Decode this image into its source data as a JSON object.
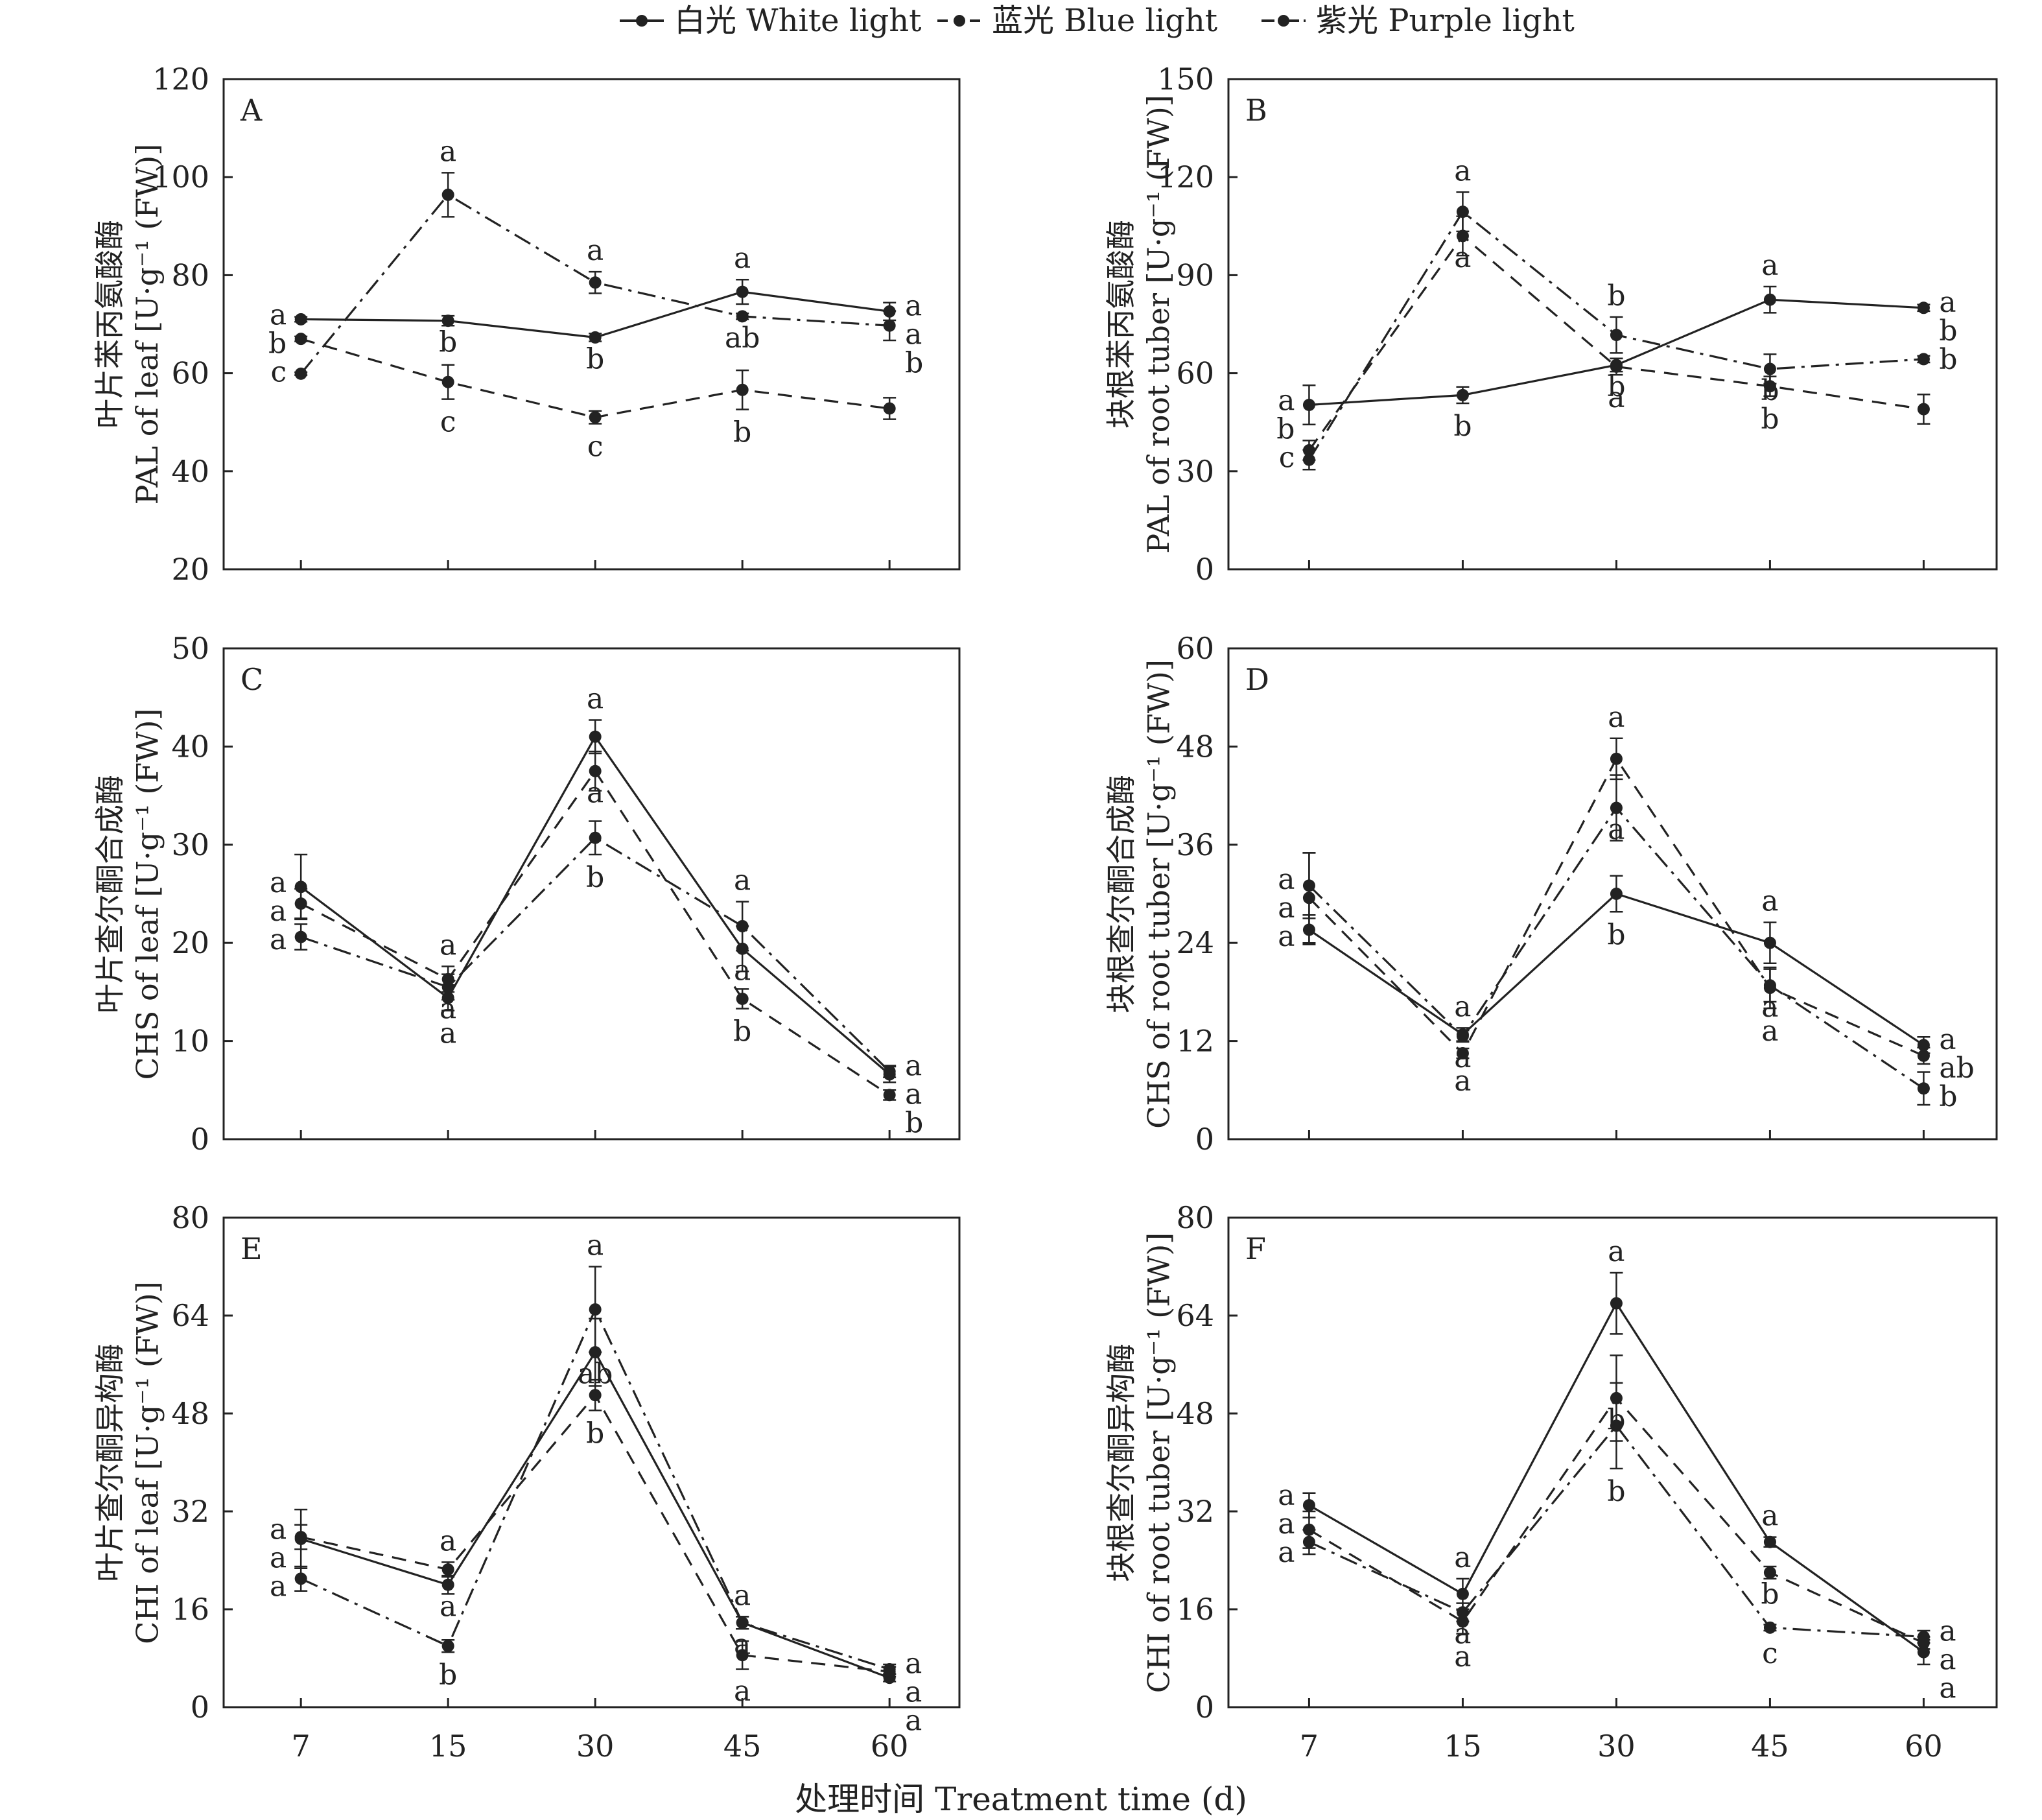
{
  "legend": {
    "white": "白光 White light",
    "blue": "蓝光 Blue light",
    "purple": "紫光 Purple light"
  },
  "x_axis_label": "处理时间 Treatment time (d)",
  "chart_data": [
    {
      "id": "A",
      "type": "line",
      "panel_letter": "A",
      "ylabel_cn": "叶片苯丙氨酸酶",
      "ylabel_en": "PAL of leaf [U·g⁻¹ (FW)]",
      "categories": [
        "7",
        "15",
        "30",
        "45",
        "60"
      ],
      "ylim": [
        20,
        120
      ],
      "yticks": [
        20,
        40,
        60,
        80,
        100,
        120
      ],
      "grid": false,
      "series": [
        {
          "name": "白光 White light",
          "style": "solid",
          "values": [
            71,
            70.7,
            67.3,
            76.6,
            72.6
          ],
          "errors": [
            0.5,
            1,
            0.8,
            2.5,
            1.8
          ],
          "letters": [
            "a",
            "b",
            "b",
            "a",
            "a"
          ]
        },
        {
          "name": "蓝光 Blue light",
          "style": "dashed",
          "values": [
            67,
            58.2,
            51,
            56.6,
            52.8
          ],
          "errors": [
            0.5,
            3.5,
            1.3,
            4,
            2.2
          ],
          "letters": [
            "b",
            "c",
            "c",
            "b",
            "b"
          ]
        },
        {
          "name": "紫光 Purple light",
          "style": "dashdot",
          "values": [
            59.9,
            96.4,
            78.5,
            71.6,
            69.7
          ],
          "errors": [
            0.3,
            4.5,
            2.2,
            0.6,
            3
          ],
          "letters": [
            "c",
            "a",
            "a",
            "ab",
            "a"
          ]
        }
      ]
    },
    {
      "id": "B",
      "type": "line",
      "panel_letter": "B",
      "ylabel_cn": "块根苯丙氨酸酶",
      "ylabel_en": "PAL of root tuber [U·g⁻¹ (FW)]",
      "categories": [
        "7",
        "15",
        "30",
        "45",
        "60"
      ],
      "ylim": [
        0,
        150
      ],
      "yticks": [
        0,
        30,
        60,
        90,
        120,
        150
      ],
      "grid": false,
      "series": [
        {
          "name": "白光 White light",
          "style": "solid",
          "values": [
            50.3,
            53.3,
            62.5,
            82.5,
            80
          ],
          "errors": [
            6,
            2.5,
            2,
            4,
            1
          ],
          "letters": [
            "a",
            "b",
            "b",
            "a",
            "a"
          ]
        },
        {
          "name": "蓝光 Blue light",
          "style": "dashed",
          "values": [
            36.4,
            102,
            62,
            56,
            49
          ],
          "errors": [
            3,
            6,
            2.5,
            3,
            4.5
          ],
          "letters": [
            "b",
            "a",
            "a",
            "b",
            "b"
          ]
        },
        {
          "name": "紫光 Purple light",
          "style": "dashdot",
          "values": [
            33.5,
            109.4,
            71.7,
            61.3,
            64.3
          ],
          "errors": [
            3,
            6,
            5.5,
            4.5,
            1
          ],
          "letters": [
            "c",
            "a",
            "b",
            "b",
            "b"
          ]
        }
      ]
    },
    {
      "id": "C",
      "type": "line",
      "panel_letter": "C",
      "ylabel_cn": "叶片查尔酮合成酶",
      "ylabel_en": "CHS of leaf [U·g⁻¹ (FW)]",
      "categories": [
        "7",
        "15",
        "30",
        "45",
        "60"
      ],
      "ylim": [
        0,
        50
      ],
      "yticks": [
        0,
        10,
        20,
        30,
        40,
        50
      ],
      "grid": false,
      "series": [
        {
          "name": "白光 White light",
          "style": "solid",
          "values": [
            25.7,
            14.4,
            41,
            19.4,
            6.6
          ],
          "errors": [
            3.3,
            1.3,
            1.7,
            2.3,
            0.8
          ],
          "letters": [
            "a",
            "a",
            "a",
            "a",
            "a"
          ]
        },
        {
          "name": "蓝光 Blue light",
          "style": "dashed",
          "values": [
            24,
            16.3,
            37.5,
            14.3,
            4.5
          ],
          "errors": [
            1.5,
            1.3,
            2,
            1,
            0.5
          ],
          "letters": [
            "a",
            "a",
            "a",
            "b",
            "b"
          ]
        },
        {
          "name": "紫光 Purple light",
          "style": "dashdot",
          "values": [
            20.6,
            15.5,
            30.7,
            21.7,
            6.9
          ],
          "errors": [
            1.3,
            1.3,
            1.7,
            2.5,
            0.6
          ],
          "letters": [
            "a",
            "a",
            "b",
            "a",
            "a"
          ]
        }
      ]
    },
    {
      "id": "D",
      "type": "line",
      "panel_letter": "D",
      "ylabel_cn": "块根查尔酮合成酶",
      "ylabel_en": "CHS of root tuber [U·g⁻¹ (FW)]",
      "categories": [
        "7",
        "15",
        "30",
        "45",
        "60"
      ],
      "ylim": [
        0,
        60
      ],
      "yticks": [
        0,
        12,
        24,
        36,
        48,
        60
      ],
      "grid": false,
      "series": [
        {
          "name": "白光 White light",
          "style": "solid",
          "values": [
            25.6,
            12.8,
            30,
            24,
            11.5
          ],
          "errors": [
            1.8,
            0.8,
            2.2,
            2.5,
            1
          ],
          "letters": [
            "a",
            "a",
            "b",
            "a",
            "a"
          ]
        },
        {
          "name": "蓝光 Blue light",
          "style": "dashed",
          "values": [
            29.5,
            10.5,
            46.5,
            18.5,
            10.2
          ],
          "errors": [
            5.5,
            0.6,
            2.5,
            2.5,
            1
          ],
          "letters": [
            "a",
            "a",
            "a",
            "a",
            "ab"
          ]
        },
        {
          "name": "紫光 Purple light",
          "style": "dashdot",
          "values": [
            31,
            12.6,
            40.5,
            18.8,
            6.2
          ],
          "errors": [
            4,
            0.7,
            4,
            2,
            2
          ],
          "letters": [
            "a",
            "a",
            "a",
            "a",
            "b"
          ]
        }
      ]
    },
    {
      "id": "E",
      "type": "line",
      "panel_letter": "E",
      "ylabel_cn": "叶片查尔酮异构酶",
      "ylabel_en": "CHI of leaf [U·g⁻¹ (FW)]",
      "categories": [
        "7",
        "15",
        "30",
        "45",
        "60"
      ],
      "ylim": [
        0,
        80
      ],
      "yticks": [
        0,
        16,
        32,
        48,
        64,
        80
      ],
      "grid": false,
      "series": [
        {
          "name": "白光 White light",
          "style": "solid",
          "values": [
            27.5,
            20,
            58,
            13.8,
            4.8
          ],
          "errors": [
            4.8,
            1.5,
            5.5,
            1,
            0.6
          ],
          "letters": [
            "a",
            "a",
            "ab",
            "a",
            "a"
          ]
        },
        {
          "name": "蓝光 Blue light",
          "style": "dashed",
          "values": [
            27.8,
            22.5,
            51,
            8.5,
            5.8
          ],
          "errors": [
            2,
            1.2,
            2.5,
            2.3,
            0.8
          ],
          "letters": [
            "a",
            "a",
            "b",
            "a",
            "a"
          ]
        },
        {
          "name": "紫光 Purple light",
          "style": "dashdot",
          "values": [
            21,
            10,
            65,
            13.8,
            6.2
          ],
          "errors": [
            2,
            1,
            7,
            1,
            0.8
          ],
          "letters": [
            "a",
            "b",
            "a",
            "a",
            "a"
          ]
        }
      ]
    },
    {
      "id": "F",
      "type": "line",
      "panel_letter": "F",
      "ylabel_cn": "块根查尔酮异构酶",
      "ylabel_en": "CHI of root tuber [U·g⁻¹ (FW)]",
      "categories": [
        "7",
        "15",
        "30",
        "45",
        "60"
      ],
      "ylim": [
        0,
        80
      ],
      "yticks": [
        0,
        16,
        32,
        48,
        64,
        80
      ],
      "grid": false,
      "series": [
        {
          "name": "白光 White light",
          "style": "solid",
          "values": [
            33,
            18.5,
            66,
            27,
            9
          ],
          "errors": [
            2,
            2.5,
            5,
            0.8,
            2
          ],
          "letters": [
            "a",
            "a",
            "a",
            "a",
            "a"
          ]
        },
        {
          "name": "蓝光 Blue light",
          "style": "dashed",
          "values": [
            29,
            14,
            50.5,
            22,
            10.5
          ],
          "errors": [
            3,
            2,
            7,
            1,
            1
          ],
          "letters": [
            "a",
            "a",
            "b",
            "b",
            "a"
          ]
        },
        {
          "name": "紫光 Purple light",
          "style": "dashdot",
          "values": [
            27,
            15.5,
            46,
            13,
            11.5
          ],
          "errors": [
            2,
            1.5,
            7,
            0.5,
            1
          ],
          "letters": [
            "a",
            "a",
            "b",
            "c",
            "a"
          ]
        }
      ]
    }
  ]
}
